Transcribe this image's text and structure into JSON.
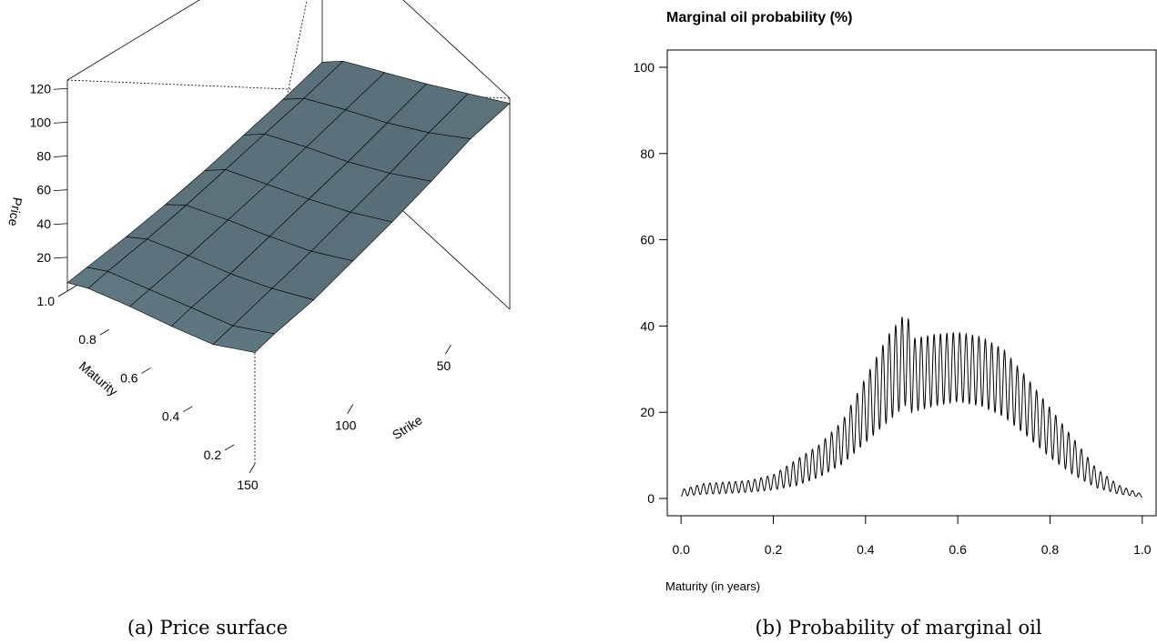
{
  "chart_data": [
    {
      "type": "surface",
      "zlabel": "Price",
      "ylabel": "Maturity",
      "xlabel": "Strike",
      "z_ticks": [
        "20",
        "40",
        "60",
        "80",
        "100",
        "120"
      ],
      "maturity_ticks": [
        "0.2",
        "0.4",
        "0.6",
        "0.8",
        "1.0"
      ],
      "strike_ticks": [
        "50",
        "100",
        "150"
      ],
      "strike_grid": [
        20,
        40,
        60,
        80,
        100,
        120,
        140,
        150
      ],
      "maturity_grid": [
        0.1,
        0.3,
        0.5,
        0.7,
        0.9,
        1.0
      ],
      "prices": [
        [
          122,
          115,
          104,
          94,
          85,
          76,
          70,
          66
        ],
        [
          105,
          96,
          86,
          77,
          68,
          60,
          52,
          48
        ],
        [
          88,
          79,
          70,
          62,
          54,
          46,
          40,
          36
        ],
        [
          72,
          64,
          56,
          48,
          41,
          34,
          28,
          25
        ],
        [
          56,
          48,
          41,
          34,
          27,
          21,
          16,
          13
        ],
        [
          44,
          36,
          29,
          22,
          16,
          11,
          7,
          5
        ]
      ],
      "surface_color": "#5e7680"
    },
    {
      "type": "line",
      "title": "Marginal oil probability (%)",
      "xlabel": "Maturity (in years)",
      "ylabel": "",
      "xlim": [
        0,
        1
      ],
      "ylim": [
        0,
        100
      ],
      "x_ticks": [
        "0.0",
        "0.2",
        "0.4",
        "0.6",
        "0.8",
        "1.0"
      ],
      "y_ticks": [
        "0",
        "20",
        "40",
        "60",
        "80",
        "100"
      ],
      "series": [
        {
          "x": [
            0.0,
            0.05,
            0.1,
            0.15,
            0.2,
            0.25,
            0.3,
            0.35,
            0.4,
            0.45,
            0.49,
            0.5,
            0.55,
            0.6,
            0.65,
            0.7,
            0.75,
            0.8,
            0.85,
            0.9,
            0.95,
            1.0
          ],
          "upper": [
            2.0,
            3.5,
            3.8,
            4.2,
            5.5,
            9.0,
            12.5,
            18.0,
            28.0,
            38.0,
            43.5,
            37.0,
            38.0,
            38.5,
            37.5,
            34.5,
            28.0,
            21.0,
            14.0,
            7.0,
            3.0,
            1.0
          ],
          "lower": [
            0.5,
            1.0,
            1.2,
            1.5,
            2.0,
            3.0,
            5.0,
            8.0,
            13.0,
            18.0,
            22.0,
            20.0,
            21.5,
            22.5,
            21.5,
            19.0,
            14.5,
            9.5,
            5.5,
            2.5,
            1.0,
            0.3
          ]
        }
      ]
    }
  ],
  "captions": {
    "a": "(a) Price surface",
    "b": "(b) Probability of marginal oil"
  }
}
